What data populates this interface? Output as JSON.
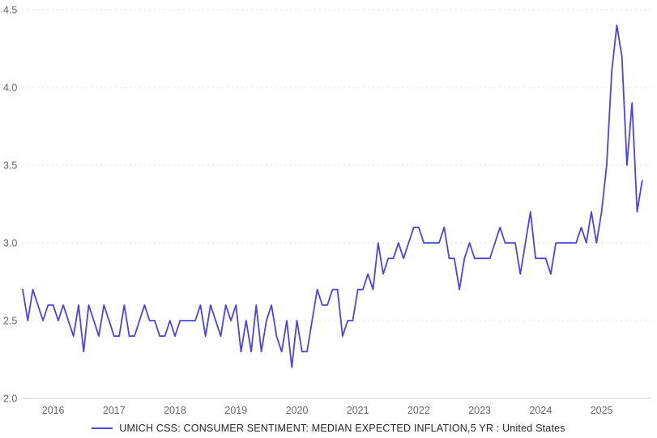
{
  "page": {
    "background_color": "#ffffff"
  },
  "chart_data": {
    "type": "line",
    "title": "",
    "series_name": "UMICH CSS: CONSUMER SENTIMENT: MEDIAN EXPECTED INFLATION,5 YR : United States",
    "frequency": "monthly",
    "start_period": "2015-07",
    "values": [
      2.7,
      2.5,
      2.7,
      2.6,
      2.5,
      2.6,
      2.6,
      2.5,
      2.6,
      2.5,
      2.4,
      2.6,
      2.3,
      2.6,
      2.5,
      2.4,
      2.6,
      2.5,
      2.4,
      2.4,
      2.6,
      2.4,
      2.4,
      2.5,
      2.6,
      2.5,
      2.5,
      2.4,
      2.4,
      2.5,
      2.4,
      2.5,
      2.5,
      2.5,
      2.5,
      2.6,
      2.4,
      2.6,
      2.5,
      2.4,
      2.6,
      2.5,
      2.6,
      2.3,
      2.5,
      2.3,
      2.6,
      2.3,
      2.5,
      2.6,
      2.4,
      2.3,
      2.5,
      2.2,
      2.5,
      2.3,
      2.3,
      2.5,
      2.7,
      2.6,
      2.6,
      2.7,
      2.7,
      2.4,
      2.5,
      2.5,
      2.7,
      2.7,
      2.8,
      2.7,
      3.0,
      2.8,
      2.9,
      2.9,
      3.0,
      2.9,
      3.0,
      3.1,
      3.1,
      3.0,
      3.0,
      3.0,
      3.0,
      3.1,
      2.9,
      2.9,
      2.7,
      2.9,
      3.0,
      2.9,
      2.9,
      2.9,
      2.9,
      3.0,
      3.1,
      3.0,
      3.0,
      3.0,
      2.8,
      3.0,
      3.2,
      2.9,
      2.9,
      2.9,
      2.8,
      3.0,
      3.0,
      3.0,
      3.0,
      3.0,
      3.1,
      3.0,
      3.2,
      3.0,
      3.2,
      3.5,
      4.1,
      4.4,
      4.2,
      3.5,
      3.9,
      3.2,
      3.4
    ],
    "ylim": [
      2.0,
      4.5
    ],
    "y_ticks": [
      "2.0",
      "2.5",
      "3.0",
      "3.5",
      "4.0",
      "4.5"
    ],
    "x_ticks": [
      "2016",
      "2017",
      "2018",
      "2019",
      "2020",
      "2021",
      "2022",
      "2023",
      "2024",
      "2025"
    ],
    "grid": "horizontal-dashed",
    "legend_position": "bottom-center",
    "line_color": "#4a43ec",
    "axis_label_color": "#63676e",
    "grid_color": "#dde0e5",
    "axis_line_color": "#c9cdd4"
  }
}
